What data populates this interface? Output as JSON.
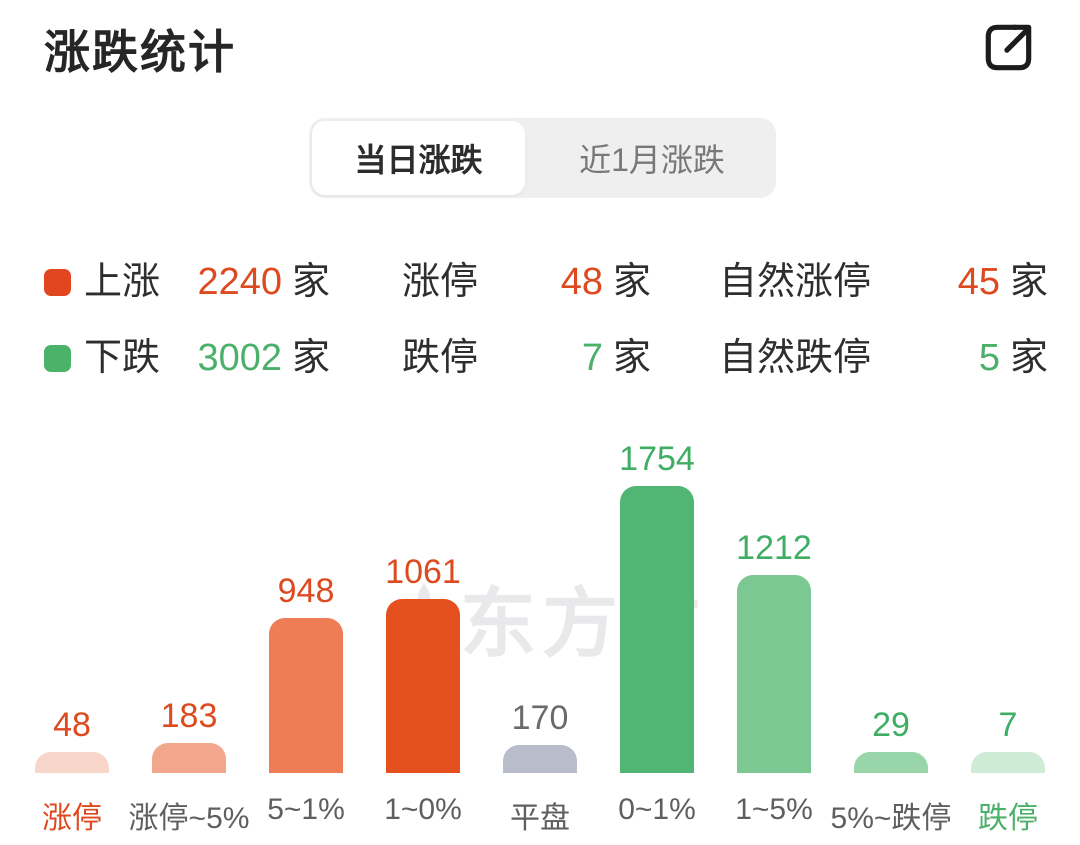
{
  "header": {
    "title": "涨跌统计"
  },
  "tabs": {
    "items": [
      {
        "label": "当日涨跌",
        "active": true
      },
      {
        "label": "近1月涨跌",
        "active": false
      }
    ]
  },
  "stats": {
    "rows": [
      {
        "marker_color": "#e1461e",
        "value_color": "#dd4a1f",
        "cols": [
          {
            "label": "上涨",
            "value": "2240",
            "unit": "家"
          },
          {
            "label": "涨停",
            "value": "48",
            "unit": "家"
          },
          {
            "label": "自然涨停",
            "value": "45",
            "unit": "家"
          }
        ]
      },
      {
        "marker_color": "#4bb269",
        "value_color": "#4bb16a",
        "cols": [
          {
            "label": "下跌",
            "value": "3002",
            "unit": "家"
          },
          {
            "label": "跌停",
            "value": "7",
            "unit": "家"
          },
          {
            "label": "自然跌停",
            "value": "5",
            "unit": "家"
          }
        ]
      }
    ]
  },
  "watermark": {
    "text": "东方财"
  },
  "chart_data": {
    "type": "bar",
    "title": "涨跌统计",
    "categories": [
      "涨停",
      "涨停~5%",
      "5~1%",
      "1~0%",
      "平盘",
      "0~1%",
      "1~5%",
      "5%~跌停",
      "跌停"
    ],
    "values": [
      48,
      183,
      948,
      1061,
      170,
      1754,
      1212,
      29,
      7
    ],
    "bar_colors": [
      "#f8d7ca",
      "#f2a78d",
      "#ee7c55",
      "#e4511f",
      "#b9bcca",
      "#51b674",
      "#7cc893",
      "#98d6a9",
      "#cdebd5"
    ],
    "value_label_colors": [
      "#dd4a1f",
      "#dd4a1f",
      "#dd4a1f",
      "#dd4a1f",
      "#6a6a6a",
      "#3fad64",
      "#3fad64",
      "#3fad64",
      "#3fad64"
    ],
    "category_label_colors": [
      "#dd4a1f",
      "#5f5f5f",
      "#5f5f5f",
      "#5f5f5f",
      "#5f5f5f",
      "#5f5f5f",
      "#5f5f5f",
      "#5f5f5f",
      "#4bb16a"
    ],
    "xlabel": "",
    "ylabel": "",
    "ylim": [
      0,
      1800
    ],
    "grid": false,
    "legend_position": "none",
    "value_labels_shown": true
  }
}
